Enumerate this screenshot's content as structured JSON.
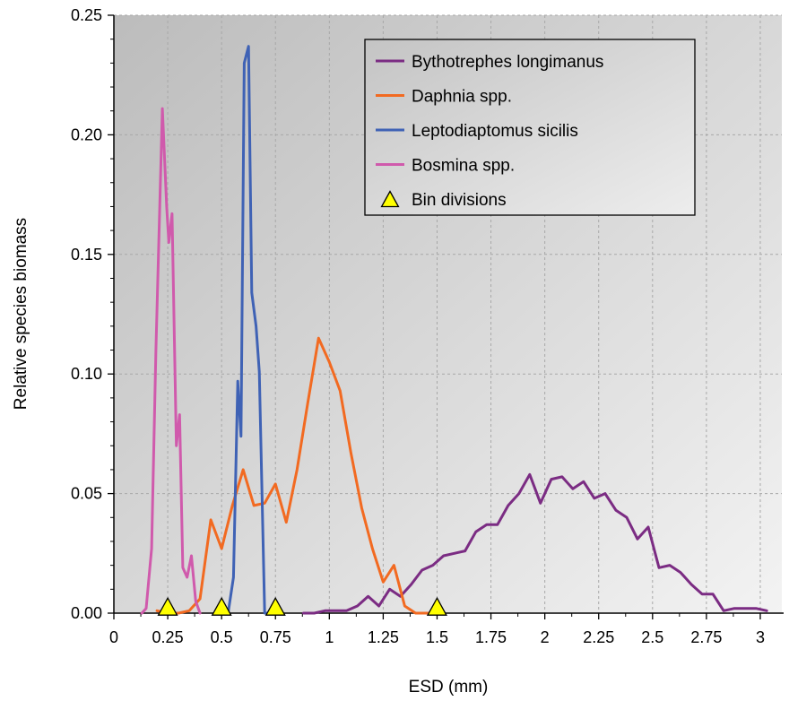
{
  "chart_data": {
    "type": "line",
    "title": "",
    "xlabel": "ESD (mm)",
    "ylabel": "Relative species biomass",
    "xlim": [
      0,
      3.1
    ],
    "ylim": [
      0,
      0.25
    ],
    "grid": true,
    "legend_position": "top-right",
    "x_ticks": [
      "0",
      "0.25",
      "0.5",
      "0.75",
      "1",
      "1.25",
      "1.5",
      "1.75",
      "2",
      "2.25",
      "2.5",
      "2.75",
      "3"
    ],
    "x_tick_values": [
      0,
      0.25,
      0.5,
      0.75,
      1,
      1.25,
      1.5,
      1.75,
      2,
      2.25,
      2.5,
      2.75,
      3
    ],
    "y_ticks": [
      "0.00",
      "0.05",
      "0.10",
      "0.15",
      "0.20",
      "0.25"
    ],
    "y_tick_values": [
      0,
      0.05,
      0.1,
      0.15,
      0.2,
      0.25
    ],
    "series": [
      {
        "name": "Bythotrephes longimanus",
        "color": "#7b2c83",
        "points": [
          [
            0.88,
            0.0
          ],
          [
            0.93,
            0.0
          ],
          [
            0.98,
            0.001
          ],
          [
            1.03,
            0.001
          ],
          [
            1.08,
            0.001
          ],
          [
            1.13,
            0.003
          ],
          [
            1.18,
            0.007
          ],
          [
            1.23,
            0.003
          ],
          [
            1.28,
            0.01
          ],
          [
            1.33,
            0.007
          ],
          [
            1.38,
            0.012
          ],
          [
            1.43,
            0.018
          ],
          [
            1.48,
            0.02
          ],
          [
            1.53,
            0.024
          ],
          [
            1.58,
            0.025
          ],
          [
            1.63,
            0.026
          ],
          [
            1.68,
            0.034
          ],
          [
            1.73,
            0.037
          ],
          [
            1.78,
            0.037
          ],
          [
            1.83,
            0.045
          ],
          [
            1.88,
            0.05
          ],
          [
            1.93,
            0.058
          ],
          [
            1.98,
            0.046
          ],
          [
            2.03,
            0.056
          ],
          [
            2.08,
            0.057
          ],
          [
            2.13,
            0.052
          ],
          [
            2.18,
            0.055
          ],
          [
            2.23,
            0.048
          ],
          [
            2.28,
            0.05
          ],
          [
            2.33,
            0.043
          ],
          [
            2.38,
            0.04
          ],
          [
            2.43,
            0.031
          ],
          [
            2.48,
            0.036
          ],
          [
            2.53,
            0.019
          ],
          [
            2.58,
            0.02
          ],
          [
            2.63,
            0.017
          ],
          [
            2.68,
            0.012
          ],
          [
            2.73,
            0.008
          ],
          [
            2.78,
            0.008
          ],
          [
            2.83,
            0.001
          ],
          [
            2.88,
            0.002
          ],
          [
            2.93,
            0.002
          ],
          [
            2.98,
            0.002
          ],
          [
            3.03,
            0.001
          ]
        ]
      },
      {
        "name": "Daphnia spp.",
        "color": "#f26a21",
        "points": [
          [
            0.2,
            0.001
          ],
          [
            0.25,
            0.0
          ],
          [
            0.3,
            0.0
          ],
          [
            0.35,
            0.001
          ],
          [
            0.4,
            0.006
          ],
          [
            0.45,
            0.039
          ],
          [
            0.5,
            0.027
          ],
          [
            0.55,
            0.045
          ],
          [
            0.6,
            0.06
          ],
          [
            0.65,
            0.045
          ],
          [
            0.7,
            0.046
          ],
          [
            0.75,
            0.054
          ],
          [
            0.8,
            0.038
          ],
          [
            0.85,
            0.06
          ],
          [
            0.9,
            0.088
          ],
          [
            0.95,
            0.115
          ],
          [
            1.0,
            0.105
          ],
          [
            1.05,
            0.093
          ],
          [
            1.1,
            0.067
          ],
          [
            1.15,
            0.044
          ],
          [
            1.2,
            0.027
          ],
          [
            1.25,
            0.013
          ],
          [
            1.3,
            0.02
          ],
          [
            1.35,
            0.003
          ],
          [
            1.4,
            0.0
          ],
          [
            1.45,
            0.0
          ],
          [
            1.5,
            0.0
          ]
        ]
      },
      {
        "name": "Leptodiaptomus sicilis",
        "color": "#3f62b5",
        "points": [
          [
            0.53,
            0.0
          ],
          [
            0.555,
            0.015
          ],
          [
            0.575,
            0.097
          ],
          [
            0.59,
            0.074
          ],
          [
            0.605,
            0.23
          ],
          [
            0.625,
            0.237
          ],
          [
            0.64,
            0.134
          ],
          [
            0.66,
            0.12
          ],
          [
            0.675,
            0.101
          ],
          [
            0.7,
            0.0
          ],
          [
            0.73,
            0.0
          ]
        ]
      },
      {
        "name": "Bosmina spp.",
        "color": "#d05aac",
        "points": [
          [
            0.13,
            0.0
          ],
          [
            0.15,
            0.002
          ],
          [
            0.175,
            0.027
          ],
          [
            0.195,
            0.11
          ],
          [
            0.225,
            0.211
          ],
          [
            0.245,
            0.17
          ],
          [
            0.255,
            0.155
          ],
          [
            0.27,
            0.167
          ],
          [
            0.29,
            0.07
          ],
          [
            0.305,
            0.083
          ],
          [
            0.32,
            0.019
          ],
          [
            0.34,
            0.015
          ],
          [
            0.36,
            0.024
          ],
          [
            0.38,
            0.005
          ],
          [
            0.4,
            0.0
          ]
        ]
      }
    ],
    "markers": {
      "name": "Bin divisions",
      "color": "#ffff00",
      "x": [
        0.25,
        0.5,
        0.75,
        1.5
      ],
      "y": 0
    }
  }
}
